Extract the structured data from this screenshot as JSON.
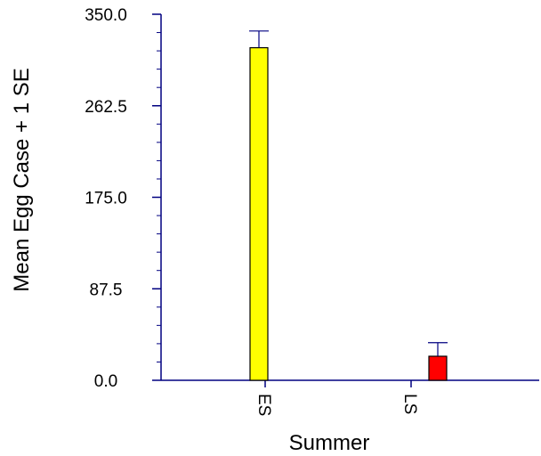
{
  "chart_data": {
    "type": "bar",
    "title": "",
    "xlabel": "Summer",
    "ylabel": "Mean Egg Case + 1 SE",
    "categories": [
      "ES",
      "LS"
    ],
    "values": [
      318,
      23
    ],
    "error_upper": [
      334,
      36
    ],
    "ylim": [
      0,
      350
    ],
    "yticks": [
      "0.0",
      "87.5",
      "175.0",
      "262.5",
      "350.0"
    ],
    "bar_colors": [
      "#ffff00",
      "#ff0000"
    ],
    "axis_color": "#000080",
    "grid": false,
    "legend": "none"
  }
}
